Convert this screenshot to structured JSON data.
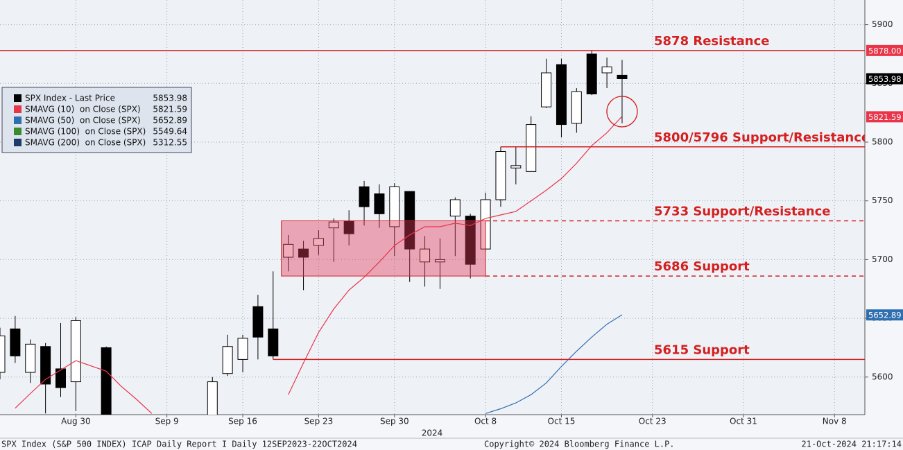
{
  "chart_data": {
    "type": "candlestick",
    "xlabel": "2024",
    "xlim": [
      "2024-08-23",
      "2024-11-12"
    ],
    "xticks": [
      {
        "value": "2024-08-30",
        "label": "Aug 30"
      },
      {
        "value": "2024-09-09",
        "label": "Sep 9"
      },
      {
        "value": "2024-09-16",
        "label": "Sep 16"
      },
      {
        "value": "2024-09-23",
        "label": "Sep 23"
      },
      {
        "value": "2024-09-30",
        "label": "Sep 30"
      },
      {
        "value": "2024-10-08",
        "label": "Oct 8"
      },
      {
        "value": "2024-10-15",
        "label": "Oct 15"
      },
      {
        "value": "2024-10-23",
        "label": "Oct 23"
      },
      {
        "value": "2024-10-31",
        "label": "Oct 31"
      },
      {
        "value": "2024-11-08",
        "label": "Nov 8"
      }
    ],
    "ylim": [
      5568,
      5921
    ],
    "yticks": [
      5600,
      5650,
      5700,
      5750,
      5800,
      5850,
      5900
    ],
    "grid": true,
    "x": [
      "2024-08-23",
      "2024-08-26",
      "2024-08-27",
      "2024-08-28",
      "2024-08-29",
      "2024-08-30",
      "2024-09-03",
      "2024-09-12",
      "2024-09-13",
      "2024-09-16",
      "2024-09-17",
      "2024-09-18",
      "2024-09-19",
      "2024-09-20",
      "2024-09-23",
      "2024-09-24",
      "2024-09-25",
      "2024-09-26",
      "2024-09-27",
      "2024-09-30",
      "2024-10-01",
      "2024-10-02",
      "2024-10-03",
      "2024-10-04",
      "2024-10-07",
      "2024-10-08",
      "2024-10-09",
      "2024-10-10",
      "2024-10-11",
      "2024-10-14",
      "2024-10-15",
      "2024-10-16",
      "2024-10-17",
      "2024-10-18",
      "2024-10-21"
    ],
    "open": [
      5604,
      5641,
      5604,
      5626,
      5607,
      5596,
      5625,
      5557,
      5603,
      5615,
      5660,
      5641,
      5702,
      5709,
      5712,
      5727,
      5733,
      5762,
      5756,
      5728,
      5758,
      5698,
      5698,
      5737,
      5737,
      5709,
      5751,
      5778,
      5775,
      5830,
      5866,
      5816,
      5875,
      5859,
      5857
    ],
    "high": [
      5642,
      5652,
      5632,
      5629,
      5646,
      5651,
      5626,
      5600,
      5636,
      5636,
      5670,
      5690,
      5721,
      5716,
      5725,
      5735,
      5742,
      5767,
      5764,
      5765,
      5758,
      5720,
      5718,
      5753,
      5739,
      5757,
      5796,
      5796,
      5822,
      5871,
      5871,
      5846,
      5878,
      5872,
      5870
    ],
    "low": [
      5598,
      5612,
      5595,
      5569,
      5583,
      5571,
      5522,
      5535,
      5601,
      5604,
      5615,
      5615,
      5690,
      5674,
      5704,
      5698,
      5712,
      5729,
      5727,
      5703,
      5681,
      5677,
      5675,
      5703,
      5684,
      5707,
      5745,
      5764,
      5775,
      5829,
      5804,
      5808,
      5840,
      5846,
      5816
    ],
    "close": [
      5635,
      5618,
      5628,
      5594,
      5591,
      5648,
      5529,
      5596,
      5626,
      5633,
      5634,
      5618,
      5713,
      5702,
      5718,
      5732,
      5722,
      5745,
      5739,
      5762,
      5709,
      5709,
      5700,
      5751,
      5696,
      5751,
      5792,
      5780,
      5815,
      5859,
      5815,
      5843,
      5841,
      5864,
      5854
    ],
    "series": [
      {
        "name": "SPX Index - Last Price",
        "color": "#000000",
        "last": 5853.98
      },
      {
        "name": "SMAVG (10)  on Close (SPX)",
        "color": "#e8354a",
        "last": 5821.59,
        "x": [
          "2024-08-26",
          "2024-08-27",
          "2024-08-28",
          "2024-08-29",
          "2024-08-30",
          "2024-09-03",
          "2024-09-04",
          "2024-09-05",
          "2024-09-06",
          "2024-09-09",
          "2024-09-19",
          "2024-09-20",
          "2024-09-23",
          "2024-09-24",
          "2024-09-25",
          "2024-09-26",
          "2024-09-27",
          "2024-09-30",
          "2024-10-01",
          "2024-10-02",
          "2024-10-03",
          "2024-10-04",
          "2024-10-07",
          "2024-10-08",
          "2024-10-09",
          "2024-10-10",
          "2024-10-11",
          "2024-10-14",
          "2024-10-15",
          "2024-10-16",
          "2024-10-17",
          "2024-10-18",
          "2024-10-21"
        ],
        "values": [
          5573.5,
          5586,
          5598,
          5606,
          5614,
          5605,
          5592,
          5581,
          5569,
          null,
          5585,
          5612,
          5638,
          5658,
          5674,
          5685,
          5698,
          5712,
          5721,
          5728,
          5728,
          5731,
          5729,
          5735,
          5738,
          5741,
          5750,
          5759,
          5769,
          5782,
          5797,
          5808,
          5822
        ]
      },
      {
        "name": "SMAVG (50)  on Close (SPX)",
        "color": "#2f6fb0",
        "last": 5652.89,
        "x": [
          "2024-10-08",
          "2024-10-09",
          "2024-10-10",
          "2024-10-11",
          "2024-10-14",
          "2024-10-15",
          "2024-10-16",
          "2024-10-17",
          "2024-10-18",
          "2024-10-21"
        ],
        "values": [
          5569,
          5573,
          5578,
          5585,
          5595,
          5609,
          5622,
          5634,
          5645,
          5653
        ]
      },
      {
        "name": "SMAVG (100)  on Close (SPX)",
        "color": "#3c8a2e",
        "last": 5549.64
      },
      {
        "name": "SMAVG (200)  on Close (SPX)",
        "color": "#1e3a6a",
        "last": 5312.55
      }
    ],
    "price_tags": [
      {
        "value": {
          "value": 5878,
          "label": "5878.00"
        },
        "color": "#e8354a"
      },
      {
        "value": 5853.98,
        "color": "#000000"
      },
      {
        "value": 5821.59,
        "color": "#e8354a"
      },
      {
        "value": 5652.89,
        "color": "#2f6fb0"
      }
    ],
    "levels": [
      {
        "value": 5878,
        "label": "5878 Resistance",
        "dashed": false
      },
      {
        "value": 5796,
        "label": "5800/5796 Support/Resistance",
        "start": "2024-10-09",
        "dashed": false
      },
      {
        "value": 5733,
        "label": "5733 Support/Resistance",
        "start": "2024-10-08",
        "dashed": true
      },
      {
        "value": 5686,
        "label": "5686 Support",
        "start": "2024-10-08",
        "dashed": true
      },
      {
        "value": 5615,
        "label": "5615 Support",
        "start": "2024-09-18",
        "dashed": false
      }
    ],
    "zone": {
      "low": 5686,
      "high": 5733,
      "start": "2024-09-19",
      "end": "2024-10-08"
    },
    "circle": {
      "x": "2024-10-21",
      "y": 5826
    },
    "footer": {
      "left": "SPX Index (S&P 500 INDEX) ICAP Daily Report I  Daily 12SEP2023-22OCT2024",
      "center": "Copyright© 2024 Bloomberg Finance L.P.",
      "right": "21-Oct-2024 21:17:14"
    }
  }
}
